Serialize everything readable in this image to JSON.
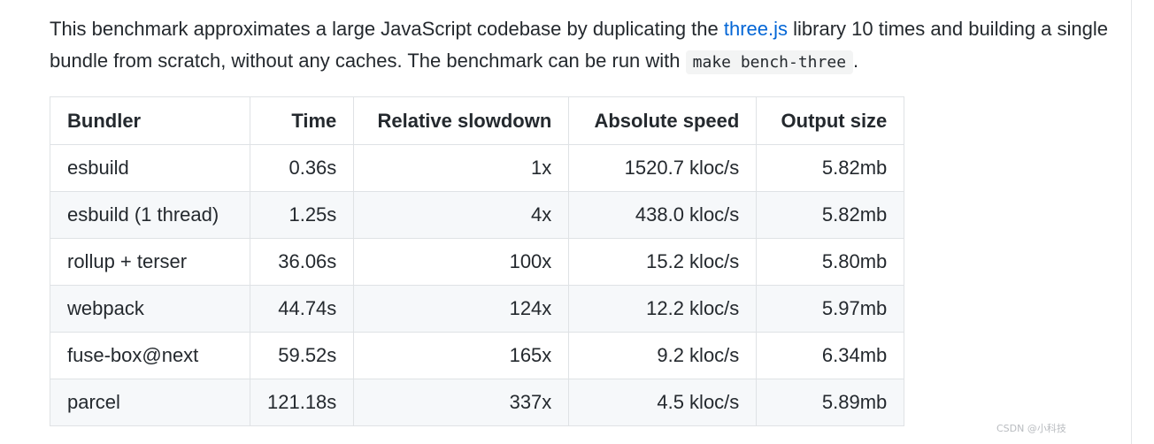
{
  "intro": {
    "part1": "This benchmark approximates a large JavaScript codebase by duplicating the ",
    "link_text": "three.js",
    "part2": " library 10 times and building a single bundle from scratch, without any caches. The benchmark can be run with ",
    "code": "make bench-three",
    "part3": "."
  },
  "table": {
    "headers": [
      "Bundler",
      "Time",
      "Relative slowdown",
      "Absolute speed",
      "Output size"
    ],
    "rows": [
      [
        "esbuild",
        "0.36s",
        "1x",
        "1520.7 kloc/s",
        "5.82mb"
      ],
      [
        "esbuild (1 thread)",
        "1.25s",
        "4x",
        "438.0 kloc/s",
        "5.82mb"
      ],
      [
        "rollup + terser",
        "36.06s",
        "100x",
        "15.2 kloc/s",
        "5.80mb"
      ],
      [
        "webpack",
        "44.74s",
        "124x",
        "12.2 kloc/s",
        "5.97mb"
      ],
      [
        "fuse-box@next",
        "59.52s",
        "165x",
        "9.2 kloc/s",
        "6.34mb"
      ],
      [
        "parcel",
        "121.18s",
        "337x",
        "4.5 kloc/s",
        "5.89mb"
      ]
    ]
  },
  "watermark": "CSDN @小科技",
  "colors": {
    "link": "#0366d6",
    "text": "#24292e",
    "row_alt": "#f6f8fa",
    "border": "#dfe2e5"
  }
}
